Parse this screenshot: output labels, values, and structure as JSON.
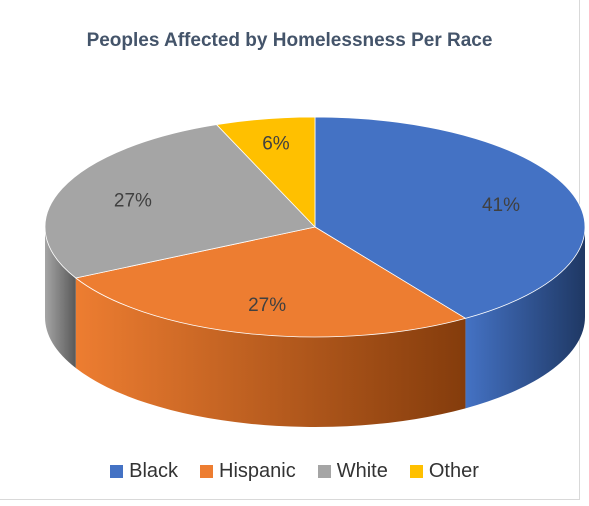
{
  "chart_data": {
    "type": "pie",
    "title": "Peoples Affected by Homelessness Per Race",
    "slices": [
      {
        "name": "Black",
        "value": 41,
        "label": "41%",
        "color": "#4472c4",
        "color_dark": "#1f3864"
      },
      {
        "name": "Hispanic",
        "value": 27,
        "label": "27%",
        "color": "#ed7d31",
        "color_dark": "#843c0c"
      },
      {
        "name": "White",
        "value": 27,
        "label": "27%",
        "color": "#a5a5a5",
        "color_dark": "#595959"
      },
      {
        "name": "Other",
        "value": 6,
        "label": "6%",
        "color": "#ffc000",
        "color_dark": "#7f6000"
      }
    ],
    "legend": "bottom",
    "style": "3d"
  }
}
